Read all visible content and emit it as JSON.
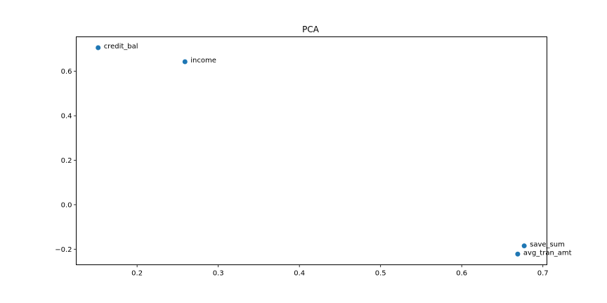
{
  "chart_data": {
    "type": "scatter",
    "title": "PCA",
    "xlabel": "",
    "ylabel": "",
    "xlim": [
      0.125,
      0.705
    ],
    "ylim": [
      -0.27,
      0.755
    ],
    "xticks": [
      0.2,
      0.3,
      0.4,
      0.5,
      0.6,
      0.7
    ],
    "xtick_labels": [
      "0.2",
      "0.3",
      "0.4",
      "0.5",
      "0.6",
      "0.7"
    ],
    "yticks": [
      -0.2,
      0.0,
      0.2,
      0.4,
      0.6
    ],
    "ytick_labels": [
      "−0.2",
      "0.0",
      "0.2",
      "0.4",
      "0.6"
    ],
    "grid": false,
    "color": "#1f77b4",
    "points": [
      {
        "label": "credit_bal",
        "x": 0.152,
        "y": 0.706
      },
      {
        "label": "income",
        "x": 0.259,
        "y": 0.643
      },
      {
        "label": "save_sum",
        "x": 0.677,
        "y": -0.185
      },
      {
        "label": "avg_tran_amt",
        "x": 0.669,
        "y": -0.222
      }
    ]
  }
}
